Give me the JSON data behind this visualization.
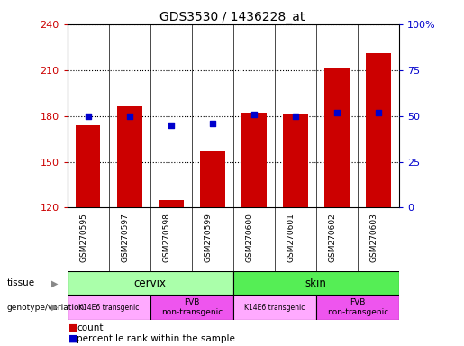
{
  "title": "GDS3530 / 1436228_at",
  "samples": [
    "GSM270595",
    "GSM270597",
    "GSM270598",
    "GSM270599",
    "GSM270600",
    "GSM270601",
    "GSM270602",
    "GSM270603"
  ],
  "counts": [
    174,
    186,
    125,
    157,
    182,
    181,
    211,
    221
  ],
  "percentiles": [
    50,
    50,
    45,
    46,
    51,
    50,
    52,
    52
  ],
  "ylim_left": [
    120,
    240
  ],
  "ylim_right": [
    0,
    100
  ],
  "yticks_left": [
    120,
    150,
    180,
    210,
    240
  ],
  "yticks_right": [
    0,
    25,
    50,
    75,
    100
  ],
  "ytick_right_labels": [
    "0",
    "25",
    "50",
    "75",
    "100%"
  ],
  "hlines": [
    150,
    180,
    210,
    240
  ],
  "bar_color": "#cc0000",
  "dot_color": "#0000cc",
  "bar_width": 0.6,
  "tissue_cervix_color": "#aaffaa",
  "tissue_skin_color": "#55ee55",
  "genotype_k14_color": "#ffaaff",
  "genotype_fvb_color": "#ee55ee",
  "bg_color": "#ffffff",
  "plot_bg_color": "#ffffff",
  "left_axis_color": "#cc0000",
  "right_axis_color": "#0000cc"
}
